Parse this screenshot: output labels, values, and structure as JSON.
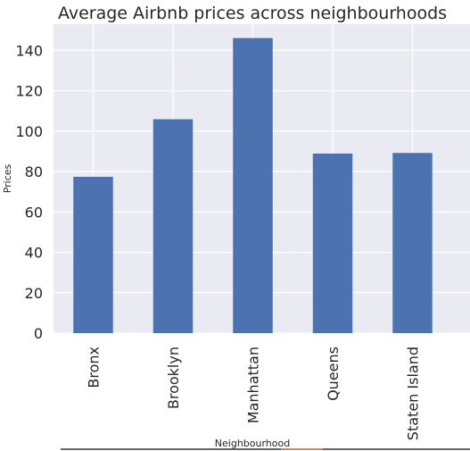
{
  "chart_data": {
    "type": "bar",
    "title": "Average Airbnb prices across neighbourhoods",
    "xlabel": "Neighbourhood",
    "ylabel": "Prices",
    "categories": [
      "Bronx",
      "Brooklyn",
      "Manhattan",
      "Queens",
      "Staten Island"
    ],
    "values": [
      77.4,
      105.9,
      146.1,
      88.9,
      89.2
    ],
    "ylim": [
      0,
      153
    ],
    "yticks": [
      0,
      20,
      40,
      60,
      80,
      100,
      120,
      140
    ],
    "grid": true,
    "legend": "none",
    "colors": {
      "bar": "#4c72b0",
      "plot_background": "#eaeaf2",
      "grid": "#ffffff",
      "text": "#262626"
    }
  }
}
